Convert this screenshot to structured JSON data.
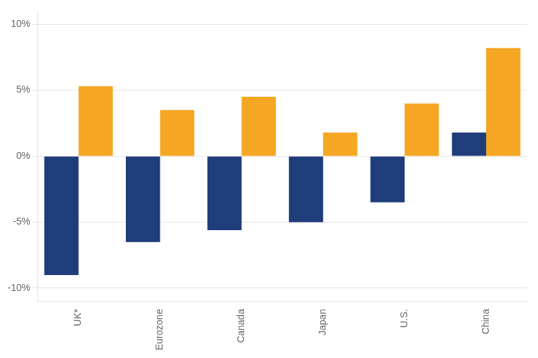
{
  "chart_data": {
    "type": "bar",
    "categories": [
      "UK*",
      "Eurozone",
      "Canada",
      "Japan",
      "U.S.",
      "China"
    ],
    "series": [
      {
        "color": "#1F3D7A",
        "values": [
          -9.0,
          -6.5,
          -5.6,
          -5.0,
          -3.5,
          1.8
        ]
      },
      {
        "color": "#F5A623",
        "values": [
          5.3,
          3.5,
          4.5,
          1.8,
          4.0,
          8.2
        ]
      }
    ],
    "ylim": [
      -11,
      11
    ],
    "yticks": [
      {
        "value": -10,
        "label": "-10%"
      },
      {
        "value": -5,
        "label": "-5%"
      },
      {
        "value": 0,
        "label": "0%"
      },
      {
        "value": 5,
        "label": "5%"
      },
      {
        "value": 10,
        "label": "10%"
      }
    ],
    "grid": true
  }
}
